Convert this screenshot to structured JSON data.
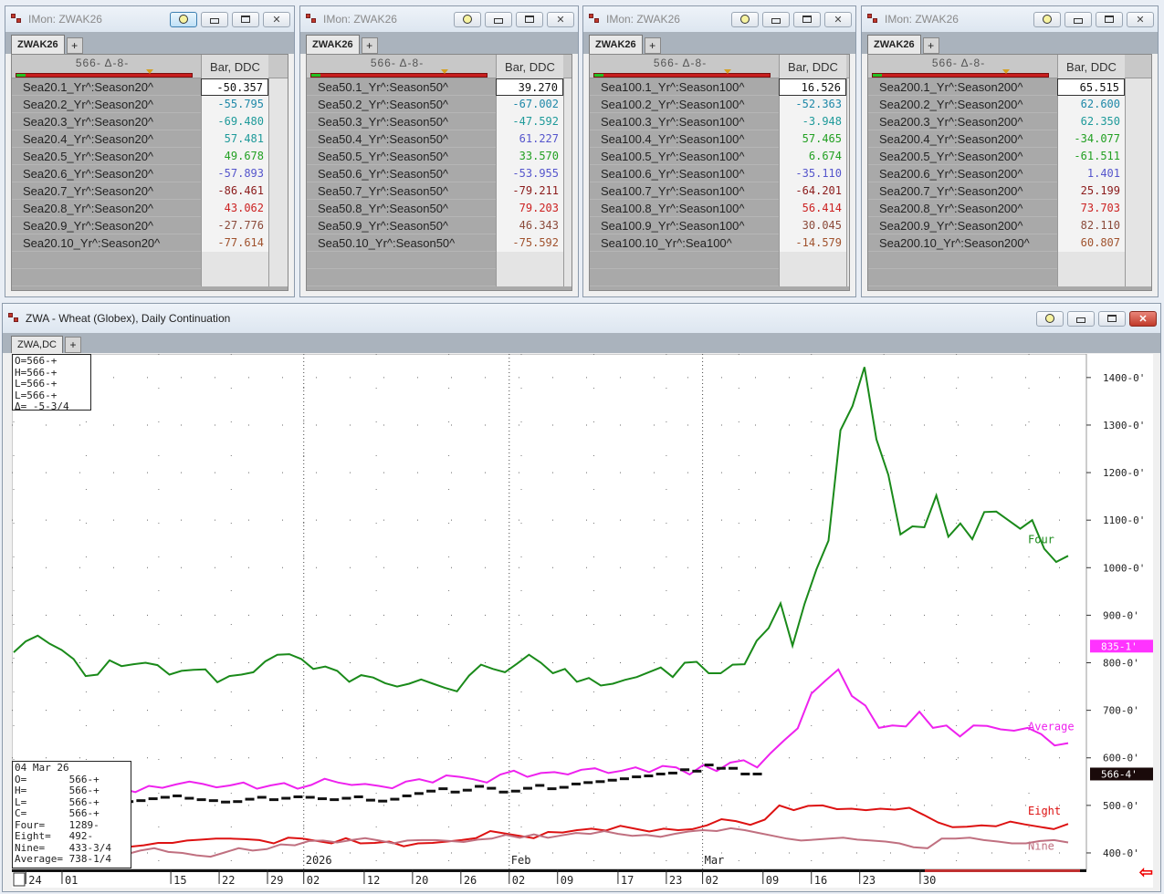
{
  "monitors": [
    {
      "title": "IMon: ZWAK26",
      "tab": "ZWAK26",
      "header_left": "566-   Δ-8-",
      "header_right": "Bar, DDC",
      "rows": [
        {
          "name": "Sea20.1_Yr^:Season20^",
          "value": "-50.357",
          "color": "#111111"
        },
        {
          "name": "Sea20.2_Yr^:Season20^",
          "value": "-55.795",
          "color": "#1e88a8"
        },
        {
          "name": "Sea20.3_Yr^:Season20^",
          "value": "-69.480",
          "color": "#1e9a9a"
        },
        {
          "name": "Sea20.4_Yr^:Season20^",
          "value": "57.481",
          "color": "#1e9a9a"
        },
        {
          "name": "Sea20.5_Yr^:Season20^",
          "value": "49.678",
          "color": "#22a022"
        },
        {
          "name": "Sea20.6_Yr^:Season20^",
          "value": "-57.893",
          "color": "#5555cc"
        },
        {
          "name": "Sea20.7_Yr^:Season20^",
          "value": "-86.461",
          "color": "#8b1a1a"
        },
        {
          "name": "Sea20.8_Yr^:Season20^",
          "value": "43.062",
          "color": "#cc2222"
        },
        {
          "name": "Sea20.9_Yr^:Season20^",
          "value": "-27.776",
          "color": "#8b4a3a"
        },
        {
          "name": "Sea20.10_Yr^:Season20^",
          "value": "-77.614",
          "color": "#a0522d"
        }
      ]
    },
    {
      "title": "IMon: ZWAK26",
      "tab": "ZWAK26",
      "header_left": "566-   Δ-8-",
      "header_right": "Bar, DDC",
      "rows": [
        {
          "name": "Sea50.1_Yr^:Season50^",
          "value": "39.270",
          "color": "#111111"
        },
        {
          "name": "Sea50.2_Yr^:Season50^",
          "value": "-67.002",
          "color": "#1e88a8"
        },
        {
          "name": "Sea50.3_Yr^:Season50^",
          "value": "-47.592",
          "color": "#1e9a9a"
        },
        {
          "name": "Sea50.4_Yr^:Season50^",
          "value": "61.227",
          "color": "#5555cc"
        },
        {
          "name": "Sea50.5_Yr^:Season50^",
          "value": "33.570",
          "color": "#22a022"
        },
        {
          "name": "Sea50.6_Yr^:Season50^",
          "value": "-53.955",
          "color": "#5555cc"
        },
        {
          "name": "Sea50.7_Yr^:Season50^",
          "value": "-79.211",
          "color": "#8b1a1a"
        },
        {
          "name": "Sea50.8_Yr^:Season50^",
          "value": "79.203",
          "color": "#cc2222"
        },
        {
          "name": "Sea50.9_Yr^:Season50^",
          "value": "46.343",
          "color": "#8b4a3a"
        },
        {
          "name": "Sea50.10_Yr^:Season50^",
          "value": "-75.592",
          "color": "#a0522d"
        }
      ]
    },
    {
      "title": "IMon: ZWAK26",
      "tab": "ZWAK26",
      "header_left": "566-   Δ-8-",
      "header_right": "Bar, DDC",
      "rows": [
        {
          "name": "Sea100.1_Yr^:Season100^",
          "value": "16.526",
          "color": "#111111"
        },
        {
          "name": "Sea100.2_Yr^:Season100^",
          "value": "-52.363",
          "color": "#1e88a8"
        },
        {
          "name": "Sea100.3_Yr^:Season100^",
          "value": "-3.948",
          "color": "#1e9a9a"
        },
        {
          "name": "Sea100.4_Yr^:Season100^",
          "value": "57.465",
          "color": "#22a022"
        },
        {
          "name": "Sea100.5_Yr^:Season100^",
          "value": "6.674",
          "color": "#22a022"
        },
        {
          "name": "Sea100.6_Yr^:Season100^",
          "value": "-35.110",
          "color": "#5555cc"
        },
        {
          "name": "Sea100.7_Yr^:Season100^",
          "value": "-64.201",
          "color": "#8b1a1a"
        },
        {
          "name": "Sea100.8_Yr^:Season100^",
          "value": "56.414",
          "color": "#cc2222"
        },
        {
          "name": "Sea100.9_Yr^:Season100^",
          "value": "30.045",
          "color": "#8b4a3a"
        },
        {
          "name": "Sea100.10_Yr^:Sea100^",
          "value": "-14.579",
          "color": "#a0522d"
        }
      ]
    },
    {
      "title": "IMon: ZWAK26",
      "tab": "ZWAK26",
      "header_left": "566-   Δ-8-",
      "header_right": "Bar, DDC",
      "rows": [
        {
          "name": "Sea200.1_Yr^:Season200^",
          "value": "65.515",
          "color": "#111111"
        },
        {
          "name": "Sea200.2_Yr^:Season200^",
          "value": "62.600",
          "color": "#1e88a8"
        },
        {
          "name": "Sea200.3_Yr^:Season200^",
          "value": "62.350",
          "color": "#1e9a9a"
        },
        {
          "name": "Sea200.4_Yr^:Season200^",
          "value": "-34.077",
          "color": "#22a022"
        },
        {
          "name": "Sea200.5_Yr^:Season200^",
          "value": "-61.511",
          "color": "#22a022"
        },
        {
          "name": "Sea200.6_Yr^:Season200^",
          "value": "1.401",
          "color": "#5555cc"
        },
        {
          "name": "Sea200.7_Yr^:Season200^",
          "value": "25.199",
          "color": "#8b1a1a"
        },
        {
          "name": "Sea200.8_Yr^:Season200^",
          "value": "73.703",
          "color": "#cc2222"
        },
        {
          "name": "Sea200.9_Yr^:Season200^",
          "value": "82.110",
          "color": "#8b4a3a"
        },
        {
          "name": "Sea200.10_Yr^:Season200^",
          "value": "60.807",
          "color": "#a0522d"
        }
      ]
    }
  ],
  "chart_window": {
    "title": "ZWA - Wheat (Globex), Daily Continuation",
    "tab": "ZWA,DC",
    "ohlc_box": "O=566-+\nH=566-+\nL=566-+\nL=566-+\nΔ= -5-3/4",
    "data_box": "04 Mar 26\nO=       566-+\nH=       566-+\nL=       566-+\nC=       566-+\nFour=    1289-\nEight=   492-\nNine=    433-3/4\nAverage= 738-1/4",
    "price_tag_magenta": "835-1'",
    "price_tag_black": "566-4'"
  },
  "chart_data": {
    "type": "line",
    "ylim": [
      375,
      1440
    ],
    "y_ticks": [
      "1400-0'",
      "1300-0'",
      "1200-0'",
      "1100-0'",
      "1000-0'",
      "900-0'",
      "800-0'",
      "700-0'",
      "600-0'",
      "500-0'",
      "400-0'"
    ],
    "y_tick_values": [
      1400,
      1300,
      1200,
      1100,
      1000,
      900,
      800,
      700,
      600,
      500,
      400
    ],
    "x_labels": [
      {
        "i": 1,
        "label": "24"
      },
      {
        "i": 4,
        "label": "01"
      },
      {
        "i": 13,
        "label": "15"
      },
      {
        "i": 17,
        "label": "22"
      },
      {
        "i": 21,
        "label": "29"
      },
      {
        "i": 24,
        "label": "02"
      },
      {
        "i": 29,
        "label": "12"
      },
      {
        "i": 33,
        "label": "20"
      },
      {
        "i": 37,
        "label": "26"
      },
      {
        "i": 41,
        "label": "02"
      },
      {
        "i": 45,
        "label": "09"
      },
      {
        "i": 50,
        "label": "17"
      },
      {
        "i": 54,
        "label": "23"
      },
      {
        "i": 57,
        "label": "02"
      },
      {
        "i": 62,
        "label": "09"
      },
      {
        "i": 66,
        "label": "16"
      },
      {
        "i": 70,
        "label": "23"
      },
      {
        "i": 75,
        "label": "30"
      }
    ],
    "month_labels": [
      {
        "i": 24,
        "label": "2026"
      },
      {
        "i": 41,
        "label": "Feb"
      },
      {
        "i": 57,
        "label": "Mar"
      }
    ],
    "series": [
      {
        "name": "Four",
        "color": "#1a8a1a",
        "values": [
          822,
          845,
          857,
          840,
          827,
          808,
          772,
          775,
          805,
          793,
          797,
          800,
          795,
          775,
          783,
          785,
          786,
          759,
          772,
          775,
          780,
          803,
          817,
          818,
          808,
          787,
          792,
          783,
          760,
          774,
          769,
          757,
          750,
          756,
          765,
          756,
          747,
          740,
          773,
          796,
          787,
          780,
          798,
          817,
          800,
          778,
          787,
          760,
          768,
          752,
          756,
          764,
          770,
          780,
          790,
          770,
          800,
          802,
          778,
          778,
          796,
          797,
          846,
          873,
          925,
          836,
          924,
          997,
          1057,
          1289,
          1340,
          1422,
          1270,
          1195,
          1070,
          1087,
          1085,
          1152,
          1065,
          1093,
          1060,
          1117,
          1118,
          1100,
          1082,
          1100,
          1040,
          1012,
          1025
        ]
      },
      {
        "name": "Average",
        "color": "#ee22ee",
        "values": [
          525,
          522,
          520,
          515,
          513,
          511,
          515,
          531,
          535,
          528,
          541,
          537,
          544,
          550,
          545,
          538,
          542,
          548,
          535,
          542,
          547,
          535,
          543,
          556,
          548,
          543,
          545,
          541,
          536,
          550,
          555,
          548,
          563,
          560,
          555,
          548,
          565,
          573,
          560,
          568,
          570,
          565,
          575,
          578,
          568,
          573,
          580,
          570,
          583,
          580,
          565,
          585,
          572,
          590,
          595,
          580,
          610,
          637,
          662,
          735,
          761,
          786,
          730,
          710,
          663,
          668,
          666,
          697,
          663,
          668,
          645,
          668,
          667,
          660,
          657,
          663,
          650,
          626,
          631
        ]
      },
      {
        "name": "Eight",
        "color": "#dd1111",
        "values": [
          418,
          412,
          405,
          398,
          392,
          388,
          385,
          395,
          413,
          416,
          421,
          421,
          426,
          428,
          430,
          430,
          429,
          427,
          420,
          432,
          430,
          425,
          420,
          431,
          420,
          421,
          424,
          414,
          420,
          421,
          424,
          427,
          431,
          446,
          441,
          436,
          431,
          444,
          443,
          448,
          451,
          447,
          457,
          451,
          445,
          451,
          448,
          450,
          458,
          471,
          467,
          459,
          470,
          500,
          490,
          499,
          500,
          492,
          493,
          490,
          493,
          491,
          495,
          480,
          464,
          454,
          455,
          458,
          456,
          466,
          460,
          455,
          450,
          461
        ]
      },
      {
        "name": "Nine",
        "color": "#c07080",
        "values": [
          390,
          388,
          395,
          401,
          398,
          392,
          395,
          392,
          397,
          405,
          410,
          402,
          400,
          395,
          392,
          401,
          410,
          405,
          408,
          418,
          416,
          425,
          426,
          422,
          427,
          431,
          426,
          420,
          426,
          427,
          427,
          425,
          423,
          428,
          430,
          438,
          432,
          439,
          432,
          437,
          442,
          440,
          446,
          440,
          436,
          438,
          434,
          440,
          445,
          448,
          446,
          452,
          448,
          442,
          436,
          430,
          426,
          428,
          430,
          432,
          428,
          426,
          424,
          420,
          412,
          410,
          430,
          430,
          432,
          427,
          424,
          420,
          420,
          425,
          427,
          422
        ]
      },
      {
        "name": "Price",
        "color": "#111111",
        "values": [
          533,
          530,
          528,
          526,
          526,
          524,
          522,
          520,
          510,
          508,
          510,
          514,
          517,
          520,
          515,
          512,
          510,
          507,
          508,
          513,
          517,
          512,
          515,
          518,
          517,
          514,
          512,
          515,
          518,
          511,
          509,
          513,
          520,
          525,
          530,
          535,
          528,
          532,
          540,
          536,
          528,
          530,
          536,
          542,
          535,
          538,
          545,
          548,
          550,
          553,
          556,
          560,
          562,
          566,
          568,
          575,
          572,
          585,
          578,
          578,
          566,
          566
        ]
      }
    ]
  }
}
